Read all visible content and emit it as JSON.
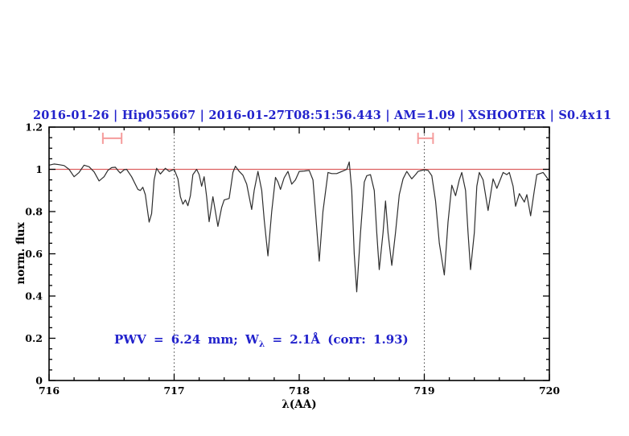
{
  "page": {
    "background": "#ffffff"
  },
  "chart_data": {
    "type": "line",
    "title": "2016-01-26 | Hip055667 | 2016-01-27T08:51:56.443 | AM=1.09 | XSHOOTER | S0.4x11",
    "title_color": "#2222cc",
    "xlabel": "λ(AA)",
    "ylabel": "norm. flux",
    "xlim": [
      716,
      720
    ],
    "ylim": [
      0,
      1.2
    ],
    "x_major_ticks": [
      716,
      717,
      718,
      719,
      720
    ],
    "x_tick_labels": [
      "716",
      "717",
      "718",
      "719",
      "720"
    ],
    "x_minor_step": 0.2,
    "y_major_ticks": [
      0,
      0.2,
      0.4,
      0.6,
      0.8,
      1,
      1.2
    ],
    "y_tick_labels": [
      "0",
      "0.2",
      "0.4",
      "0.6",
      "0.8",
      "1",
      "1.2"
    ],
    "y_minor_step": 0.05,
    "grid": false,
    "legend": "none",
    "continuum_line": {
      "y": 1.0,
      "color": "#dd5f5f"
    },
    "dotted_vlines": {
      "x": [
        717,
        719
      ],
      "color": "#444444",
      "style": "dotted"
    },
    "range_markers": {
      "color": "#f59c9c",
      "y_flux": 1.147,
      "items": [
        {
          "x_start": 716.43,
          "x_end": 716.58
        },
        {
          "x_start": 718.95,
          "x_end": 719.07
        }
      ]
    },
    "annotation": {
      "text": "PWV = 6.24 mm; Wλ = 2.1Å (corr: 1.93)",
      "pre": "PWV = 6.24 mm; W",
      "sub": "λ",
      "post": " = 2.1Å (corr: 1.93)",
      "color": "#2222cc"
    },
    "series": [
      {
        "name": "normalized-spectrum",
        "color": "#2e2e2e",
        "points": [
          [
            716.0,
            1.02
          ],
          [
            716.04,
            1.025
          ],
          [
            716.08,
            1.022
          ],
          [
            716.12,
            1.018
          ],
          [
            716.16,
            1.0
          ],
          [
            716.2,
            0.965
          ],
          [
            716.24,
            0.985
          ],
          [
            716.28,
            1.02
          ],
          [
            716.32,
            1.012
          ],
          [
            716.36,
            0.988
          ],
          [
            716.4,
            0.945
          ],
          [
            716.44,
            0.965
          ],
          [
            716.47,
            0.995
          ],
          [
            716.5,
            1.008
          ],
          [
            716.53,
            1.01
          ],
          [
            716.55,
            0.995
          ],
          [
            716.57,
            0.982
          ],
          [
            716.6,
            0.998
          ],
          [
            716.62,
            1.0
          ],
          [
            716.66,
            0.965
          ],
          [
            716.71,
            0.905
          ],
          [
            716.73,
            0.9
          ],
          [
            716.75,
            0.915
          ],
          [
            716.77,
            0.88
          ],
          [
            716.8,
            0.75
          ],
          [
            716.82,
            0.79
          ],
          [
            716.84,
            0.95
          ],
          [
            716.86,
            1.005
          ],
          [
            716.89,
            0.978
          ],
          [
            716.93,
            1.005
          ],
          [
            716.96,
            0.99
          ],
          [
            717.0,
            1.0
          ],
          [
            717.03,
            0.955
          ],
          [
            717.05,
            0.87
          ],
          [
            717.07,
            0.835
          ],
          [
            717.09,
            0.855
          ],
          [
            717.11,
            0.828
          ],
          [
            717.13,
            0.875
          ],
          [
            717.15,
            0.975
          ],
          [
            717.18,
            1.0
          ],
          [
            717.2,
            0.975
          ],
          [
            717.22,
            0.92
          ],
          [
            717.24,
            0.965
          ],
          [
            717.26,
            0.87
          ],
          [
            717.28,
            0.752
          ],
          [
            717.31,
            0.87
          ],
          [
            717.33,
            0.8
          ],
          [
            717.35,
            0.73
          ],
          [
            717.38,
            0.82
          ],
          [
            717.4,
            0.855
          ],
          [
            717.44,
            0.862
          ],
          [
            717.47,
            0.985
          ],
          [
            717.49,
            1.015
          ],
          [
            717.52,
            0.99
          ],
          [
            717.55,
            0.972
          ],
          [
            717.58,
            0.93
          ],
          [
            717.62,
            0.81
          ],
          [
            717.64,
            0.9
          ],
          [
            717.67,
            0.99
          ],
          [
            717.7,
            0.9
          ],
          [
            717.72,
            0.76
          ],
          [
            717.75,
            0.59
          ],
          [
            717.78,
            0.8
          ],
          [
            717.81,
            0.962
          ],
          [
            717.83,
            0.94
          ],
          [
            717.85,
            0.905
          ],
          [
            717.88,
            0.96
          ],
          [
            717.91,
            0.99
          ],
          [
            717.94,
            0.93
          ],
          [
            717.97,
            0.95
          ],
          [
            718.0,
            0.99
          ],
          [
            718.04,
            0.992
          ],
          [
            718.08,
            0.995
          ],
          [
            718.11,
            0.95
          ],
          [
            718.13,
            0.8
          ],
          [
            718.16,
            0.565
          ],
          [
            718.19,
            0.8
          ],
          [
            718.23,
            0.985
          ],
          [
            718.26,
            0.98
          ],
          [
            718.3,
            0.98
          ],
          [
            718.35,
            0.992
          ],
          [
            718.38,
            1.0
          ],
          [
            718.4,
            1.035
          ],
          [
            718.42,
            0.9
          ],
          [
            718.44,
            0.6
          ],
          [
            718.46,
            0.42
          ],
          [
            718.49,
            0.7
          ],
          [
            718.52,
            0.94
          ],
          [
            718.54,
            0.97
          ],
          [
            718.57,
            0.975
          ],
          [
            718.6,
            0.9
          ],
          [
            718.62,
            0.7
          ],
          [
            718.64,
            0.525
          ],
          [
            718.67,
            0.7
          ],
          [
            718.69,
            0.85
          ],
          [
            718.71,
            0.7
          ],
          [
            718.74,
            0.545
          ],
          [
            718.77,
            0.7
          ],
          [
            718.8,
            0.88
          ],
          [
            718.83,
            0.955
          ],
          [
            718.86,
            0.99
          ],
          [
            718.9,
            0.955
          ],
          [
            718.93,
            0.975
          ],
          [
            718.95,
            0.99
          ],
          [
            719.0,
            0.998
          ],
          [
            719.03,
            0.995
          ],
          [
            719.06,
            0.97
          ],
          [
            719.09,
            0.85
          ],
          [
            719.12,
            0.65
          ],
          [
            719.16,
            0.5
          ],
          [
            719.19,
            0.75
          ],
          [
            719.22,
            0.925
          ],
          [
            719.25,
            0.875
          ],
          [
            719.28,
            0.95
          ],
          [
            719.3,
            0.985
          ],
          [
            719.33,
            0.9
          ],
          [
            719.35,
            0.7
          ],
          [
            719.37,
            0.525
          ],
          [
            719.4,
            0.7
          ],
          [
            719.42,
            0.92
          ],
          [
            719.44,
            0.985
          ],
          [
            719.47,
            0.95
          ],
          [
            719.51,
            0.805
          ],
          [
            719.55,
            0.955
          ],
          [
            719.58,
            0.91
          ],
          [
            719.63,
            0.985
          ],
          [
            719.66,
            0.975
          ],
          [
            719.68,
            0.985
          ],
          [
            719.71,
            0.92
          ],
          [
            719.73,
            0.825
          ],
          [
            719.76,
            0.885
          ],
          [
            719.8,
            0.845
          ],
          [
            719.82,
            0.88
          ],
          [
            719.85,
            0.78
          ],
          [
            719.88,
            0.9
          ],
          [
            719.9,
            0.975
          ],
          [
            719.95,
            0.985
          ],
          [
            720.0,
            0.945
          ]
        ]
      }
    ]
  }
}
